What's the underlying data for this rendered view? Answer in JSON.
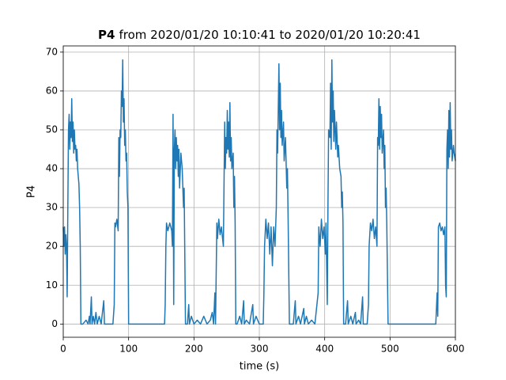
{
  "chart_data": {
    "type": "line",
    "title": [
      "P4",
      "from 2020/01/20 10:10:41 to 2020/01/20 10:20:41"
    ],
    "xlabel": "time (s)",
    "ylabel": "P4",
    "xlim": [
      0,
      600
    ],
    "xticks": [
      0,
      100,
      200,
      300,
      400,
      500,
      600
    ],
    "ylim": [
      -3.4,
      71.6
    ],
    "yticks": [
      0,
      10,
      20,
      30,
      40,
      50,
      60,
      70
    ],
    "grid": true,
    "series": [
      {
        "name": "P4",
        "color": "#1f77b4",
        "x": [
          0,
          1,
          2,
          3,
          4,
          5,
          6,
          7,
          8,
          9,
          10,
          11,
          12,
          13,
          14,
          15,
          16,
          17,
          18,
          19,
          20,
          21,
          22,
          23,
          24,
          25,
          26,
          27,
          30,
          35,
          38,
          40,
          41,
          43,
          44,
          46,
          48,
          50,
          52,
          55,
          58,
          62,
          63,
          70,
          76,
          78,
          79,
          80,
          82,
          84,
          85,
          86,
          87,
          88,
          89,
          90,
          91,
          92,
          93,
          94,
          95,
          96,
          97,
          98,
          99,
          100,
          155,
          156,
          157,
          158,
          160,
          163,
          166,
          167,
          168,
          169,
          170,
          171,
          172,
          173,
          174,
          175,
          176,
          177,
          178,
          180,
          182,
          184,
          185,
          187,
          190,
          192,
          193,
          196,
          200,
          205,
          210,
          215,
          220,
          225,
          228,
          230,
          232,
          233,
          235,
          236,
          238,
          240,
          242,
          245,
          247,
          248,
          249,
          250,
          251,
          252,
          253,
          254,
          255,
          256,
          257,
          258,
          260,
          261,
          262,
          263,
          264,
          266,
          270,
          273,
          276,
          277,
          280,
          285,
          290,
          291,
          295,
          300,
          306,
          307,
          308,
          310,
          312,
          314,
          316,
          318,
          320,
          322,
          324,
          326,
          327,
          328,
          330,
          331,
          332,
          333,
          334,
          335,
          337,
          338,
          340,
          342,
          343,
          344,
          346,
          352,
          355,
          356,
          360,
          363,
          368,
          369,
          372,
          375,
          380,
          385,
          390,
          391,
          393,
          395,
          397,
          399,
          401,
          402,
          404,
          405,
          406,
          408,
          409,
          410,
          411,
          412,
          413,
          414,
          415,
          417,
          418,
          420,
          421,
          423,
          425,
          426,
          427,
          428,
          429,
          432,
          435,
          436,
          440,
          443,
          447,
          448,
          452,
          455,
          458,
          459,
          465,
          467,
          468,
          470,
          472,
          474,
          476,
          478,
          480,
          481,
          482,
          483,
          484,
          485,
          486,
          487,
          488,
          490,
          491,
          492,
          493,
          494,
          495,
          497,
          500,
          570,
          572,
          573,
          574,
          576,
          578,
          580,
          582,
          584,
          585,
          586,
          587,
          588,
          589,
          590,
          591,
          592,
          593,
          594,
          595,
          597,
          598,
          600
        ],
        "values": [
          25,
          20,
          25,
          18,
          23,
          20,
          7,
          30,
          50,
          54,
          45,
          52,
          48,
          58,
          47,
          52,
          44,
          50,
          45,
          46,
          42,
          45,
          40,
          38,
          36,
          30,
          20,
          0,
          0,
          1,
          0,
          2,
          0,
          7,
          0,
          2,
          0,
          3,
          0,
          2,
          0,
          6,
          0,
          0,
          0,
          5,
          26,
          25,
          27,
          24,
          48,
          38,
          50,
          48,
          60,
          56,
          68,
          52,
          58,
          46,
          50,
          42,
          44,
          34,
          30,
          0,
          0,
          5,
          20,
          26,
          24,
          26,
          24,
          20,
          54,
          5,
          45,
          50,
          40,
          48,
          42,
          46,
          38,
          45,
          35,
          44,
          40,
          30,
          35,
          0,
          0,
          5,
          0,
          2,
          0,
          1,
          0,
          2,
          0,
          1,
          3,
          0,
          8,
          0,
          26,
          22,
          27,
          23,
          25,
          20,
          52,
          40,
          48,
          44,
          55,
          45,
          52,
          43,
          57,
          42,
          48,
          40,
          44,
          30,
          38,
          26,
          0,
          0,
          2,
          0,
          6,
          0,
          1,
          0,
          5,
          0,
          2,
          0,
          0,
          8,
          20,
          27,
          22,
          26,
          18,
          25,
          15,
          25,
          20,
          30,
          50,
          44,
          67,
          50,
          62,
          48,
          55,
          46,
          52,
          42,
          48,
          35,
          40,
          28,
          0,
          0,
          6,
          0,
          2,
          0,
          4,
          0,
          2,
          0,
          1,
          0,
          8,
          25,
          20,
          27,
          22,
          25,
          18,
          26,
          5,
          30,
          50,
          48,
          62,
          45,
          68,
          52,
          60,
          47,
          55,
          45,
          52,
          43,
          46,
          40,
          38,
          30,
          34,
          26,
          0,
          0,
          6,
          0,
          2,
          0,
          3,
          0,
          1,
          0,
          7,
          0,
          0,
          5,
          20,
          26,
          24,
          27,
          22,
          25,
          20,
          48,
          46,
          58,
          45,
          56,
          48,
          54,
          44,
          50,
          40,
          46,
          30,
          35,
          26,
          0,
          0,
          0,
          8,
          2,
          25,
          26,
          24,
          25,
          23,
          25,
          10,
          7,
          45,
          50,
          40,
          55,
          43,
          57,
          45,
          50,
          42,
          46,
          44,
          42
        ]
      }
    ]
  }
}
